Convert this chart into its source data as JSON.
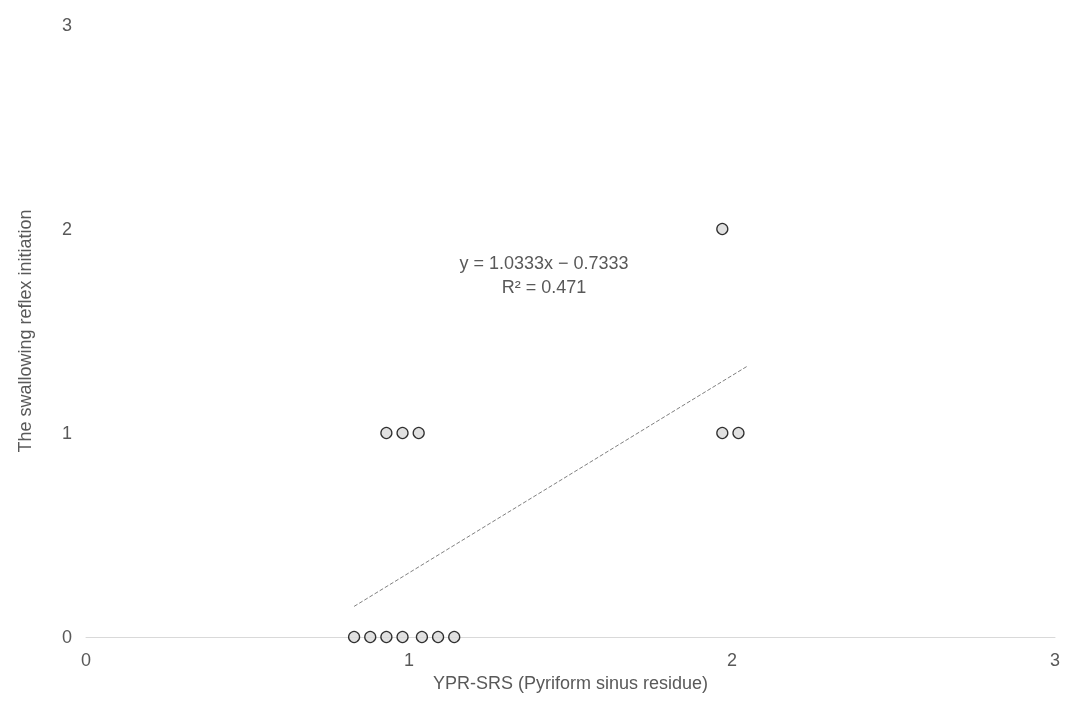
{
  "chart_data": {
    "type": "scatter",
    "xlabel": "YPR-SRS (Pyriform sinus residue)",
    "ylabel": "The swallowing reflex initiation",
    "xlim": [
      0,
      3
    ],
    "xticks": [
      0,
      1,
      2,
      3
    ],
    "ylim": [
      0,
      3
    ],
    "yticks": [
      0,
      1,
      2,
      3
    ],
    "grid": false,
    "annotations": [
      "y = 1.0333x − 0.7333",
      "R² = 0.471"
    ],
    "series": [
      {
        "color": "#d9d9d9",
        "marker": "circle",
        "x": [
          0.83,
          0.88,
          0.93,
          0.98,
          1.04,
          1.09,
          1.14,
          0.93,
          0.98,
          1.03,
          1.97,
          2.02,
          1.97
        ],
        "values": [
          0,
          0,
          0,
          0,
          0,
          0,
          0,
          1,
          1,
          1,
          1,
          1,
          2
        ]
      },
      {
        "type": "line",
        "color": "#808080",
        "marker": "none",
        "line_style": "dashed",
        "x": [
          0.83,
          2.05
        ],
        "values": [
          0.15,
          1.33
        ]
      }
    ]
  }
}
